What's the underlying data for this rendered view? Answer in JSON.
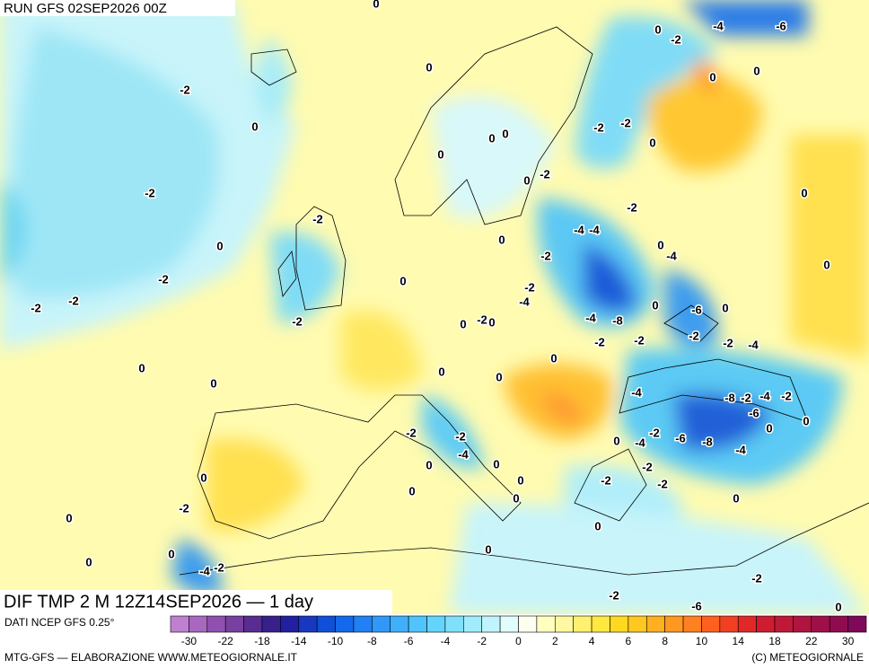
{
  "header": {
    "run": "RUN GFS 02SEP2026 00Z"
  },
  "map": {
    "contour_labels": [
      "0",
      "0",
      "-2",
      "-4",
      "-6",
      "0",
      "0",
      "0",
      "-2",
      "0",
      "-2",
      "-2",
      "0",
      "0",
      "0",
      "0",
      "-2",
      "0",
      "-2",
      "0",
      "-2",
      "-2",
      "-4",
      "-4",
      "0",
      "0",
      "0",
      "-2",
      "-4",
      "0",
      "-2",
      "0",
      "-2",
      "-4",
      "-2",
      "-2",
      "0",
      "-6",
      "0",
      "-4",
      "-8",
      "-2",
      "0",
      "-2",
      "0",
      "-2",
      "-2",
      "-2",
      "-2",
      "-4",
      "0",
      "0",
      "0",
      "0",
      "0",
      "-4",
      "-8",
      "-2",
      "-4",
      "-2",
      "-6",
      "0",
      "0",
      "-2",
      "-2",
      "-2",
      "-6",
      "-8",
      "0",
      "-4",
      "-4",
      "-4",
      "0",
      "0",
      "-2",
      "0",
      "0",
      "-2",
      "-2",
      "0",
      "0",
      "0",
      "-2",
      "0",
      "0",
      "0",
      "0",
      "0",
      "-2",
      "-4",
      "-2",
      "-2",
      "-6",
      "0"
    ]
  },
  "footer": {
    "title": "DIF TMP 2 M 12Z14SEP2026 — 1 day",
    "source": "DATI NCEP GFS 0.25°",
    "credit_left": "MTG-GFS — ELABORAZIONE WWW.METEOGIORNALE.IT",
    "credit_right": "(C) METEOGIORNALE",
    "scale_labels": [
      "-30",
      "-22",
      "-18",
      "-14",
      "-10",
      "-8",
      "-6",
      "-4",
      "-2",
      "0",
      "2",
      "4",
      "6",
      "8",
      "10",
      "14",
      "18",
      "22",
      "30"
    ],
    "scale_colors": [
      "#c080d0",
      "#a868c0",
      "#9050b0",
      "#7840a0",
      "#582c90",
      "#38208c",
      "#2020a0",
      "#1838c0",
      "#1050d8",
      "#1468ec",
      "#2080f4",
      "#3098f8",
      "#40b0fa",
      "#50c4fc",
      "#64d4fc",
      "#80e0fc",
      "#a0ecfc",
      "#c0f4fc",
      "#e0fcfc",
      "#fffff0",
      "#ffffc0",
      "#fff8a0",
      "#fff070",
      "#ffe840",
      "#ffd820",
      "#ffc820",
      "#ffb020",
      "#ff9820",
      "#ff8020",
      "#ff6020",
      "#f04020",
      "#e02828",
      "#d01c30",
      "#c01838",
      "#b01440",
      "#a01048",
      "#900c50",
      "#800858"
    ]
  }
}
